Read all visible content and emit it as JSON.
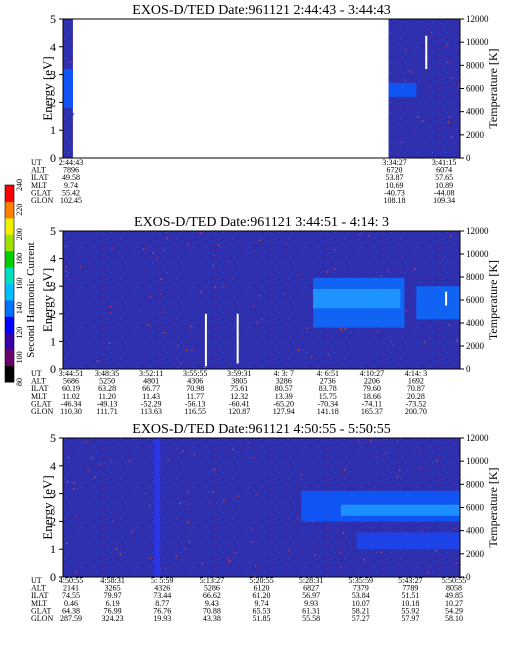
{
  "colorbar": {
    "label": "Second Harmonic Current",
    "ticks": [
      "80",
      "100",
      "120",
      "140",
      "160",
      "180",
      "200",
      "220",
      "240"
    ],
    "colors": [
      "#000000",
      "#6a006a",
      "#3a00a8",
      "#0000ff",
      "#0070ff",
      "#00c0ff",
      "#00e0c0",
      "#00d000",
      "#a0e000",
      "#f0f000",
      "#ff8000",
      "#ff0000"
    ]
  },
  "chart_data": [
    {
      "type": "heatmap",
      "title": "EXOS-D/TED   Date:961121  2:44:43 - 3:44:43",
      "ylabel": "Energy [eV]",
      "y2label": "Temperature [K]",
      "ylim": [
        0,
        5
      ],
      "y2lim": [
        0,
        12000
      ],
      "yticks": [
        "0",
        "1",
        "2",
        "3",
        "4",
        "5"
      ],
      "y2ticks": [
        "0",
        "2000",
        "4000",
        "6000",
        "8000",
        "10000",
        "12000"
      ],
      "orbit_rows": [
        "UT",
        "ALT",
        "ILAT",
        "MLT",
        "GLAT",
        "GLON"
      ],
      "orbit_table": [
        {
          "x": 0.0,
          "values": [
            "2:44:43",
            "7896",
            "49.58",
            "9.74",
            "55.42",
            "102.45"
          ]
        },
        {
          "x": 0.835,
          "values": [
            "3:34:27",
            "6720",
            "53.87",
            "10.69",
            "-40.73",
            "108.18"
          ]
        },
        {
          "x": 0.96,
          "values": [
            "3:41:15",
            "6074",
            "57.65",
            "10.89",
            "-44.08",
            "109.34"
          ]
        }
      ],
      "data_segments": [
        [
          0.0,
          0.025
        ],
        [
          0.82,
          1.0
        ]
      ],
      "features": [
        {
          "kind": "band",
          "x": [
            0.82,
            0.89
          ],
          "energy": [
            2.2,
            2.7
          ],
          "color": "#0a5cff"
        },
        {
          "kind": "spike",
          "x": 0.915,
          "energy": [
            3.2,
            4.4
          ],
          "color": "#ffffff"
        },
        {
          "kind": "band",
          "x": [
            0.0,
            0.025
          ],
          "energy": [
            1.8,
            3.2
          ],
          "color": "#0a5cff"
        }
      ]
    },
    {
      "type": "heatmap",
      "title": "EXOS-D/TED   Date:961121  3:44:51 - 4:14: 3",
      "ylabel": "Energy [eV]",
      "y2label": "Temperature [K]",
      "ylim": [
        0,
        5
      ],
      "y2lim": [
        0,
        12000
      ],
      "yticks": [
        "0",
        "1",
        "2",
        "3",
        "4",
        "5"
      ],
      "y2ticks": [
        "0",
        "2000",
        "4000",
        "6000",
        "8000",
        "10000",
        "12000"
      ],
      "orbit_rows": [
        "UT",
        "ALT",
        "ILAT",
        "MLT",
        "GLAT",
        "GLON"
      ],
      "orbit_table": [
        {
          "x": 0.0,
          "values": [
            "3:44:51",
            "5686",
            "60.19",
            "11.02",
            "-46.34",
            "110.30"
          ]
        },
        {
          "x": 0.111,
          "values": [
            "3:48:35",
            "5250",
            "63.28",
            "11.20",
            "-49.13",
            "111.71"
          ]
        },
        {
          "x": 0.222,
          "values": [
            "3:52:11",
            "4801",
            "66.77",
            "11.43",
            "-52.29",
            "113.63"
          ]
        },
        {
          "x": 0.333,
          "values": [
            "3:55:55",
            "4306",
            "70.98",
            "11.77",
            "-56.13",
            "116.55"
          ]
        },
        {
          "x": 0.444,
          "values": [
            "3:59:31",
            "3805",
            "75.61",
            "12.32",
            "-60.41",
            "120.87"
          ]
        },
        {
          "x": 0.556,
          "values": [
            "4: 3: 7",
            "3286",
            "80.57",
            "13.39",
            "-65.20",
            "127.94"
          ]
        },
        {
          "x": 0.667,
          "values": [
            "4: 6:51",
            "2736",
            "83.78",
            "15.75",
            "-70.34",
            "141.18"
          ]
        },
        {
          "x": 0.778,
          "values": [
            "4:10:27",
            "2206",
            "79.60",
            "18.66",
            "-74.11",
            "165.37"
          ]
        },
        {
          "x": 0.889,
          "values": [
            "4:14: 3",
            "1692",
            "70.87",
            "20.28",
            "-73.52",
            "200.70"
          ]
        }
      ],
      "data_segments": [
        [
          0.0,
          1.0
        ]
      ],
      "features": [
        {
          "kind": "band",
          "x": [
            0.63,
            0.86
          ],
          "energy": [
            1.5,
            3.3
          ],
          "color": "#0a6cff"
        },
        {
          "kind": "band",
          "x": [
            0.63,
            0.85
          ],
          "energy": [
            2.2,
            2.9
          ],
          "color": "#1e9bff"
        },
        {
          "kind": "band",
          "x": [
            0.89,
            1.0
          ],
          "energy": [
            1.8,
            3.0
          ],
          "color": "#0a6cff"
        },
        {
          "kind": "spike",
          "x": 0.36,
          "energy": [
            0.1,
            2.0
          ],
          "color": "#ffffff"
        },
        {
          "kind": "spike",
          "x": 0.44,
          "energy": [
            0.2,
            2.0
          ],
          "color": "#ffffff"
        },
        {
          "kind": "spike",
          "x": 0.965,
          "energy": [
            2.3,
            2.8
          ],
          "color": "#ffffff"
        }
      ]
    },
    {
      "type": "heatmap",
      "title": "EXOS-D/TED   Date:961121  4:50:55 - 5:50:55",
      "ylabel": "Energy [eV]",
      "y2label": "Temperature [K]",
      "ylim": [
        0,
        5
      ],
      "y2lim": [
        0,
        12000
      ],
      "yticks": [
        "0",
        "1",
        "2",
        "3",
        "4",
        "5"
      ],
      "y2ticks": [
        "0",
        "2000",
        "4000",
        "6000",
        "8000",
        "10000",
        "12000"
      ],
      "orbit_rows": [
        "UT",
        "ALT",
        "ILAT",
        "MLT",
        "GLAT",
        "GLON"
      ],
      "orbit_table": [
        {
          "x": 0.0,
          "values": [
            "4:50:55",
            "2141",
            "74.55",
            "0.46",
            "64.38",
            "287.59"
          ]
        },
        {
          "x": 0.125,
          "values": [
            "4:58:31",
            "3265",
            "79.97",
            "6.19",
            "76.99",
            "324.23"
          ]
        },
        {
          "x": 0.25,
          "values": [
            "5: 5:59",
            "4326",
            "73.44",
            "8.77",
            "76.76",
            "19.93"
          ]
        },
        {
          "x": 0.375,
          "values": [
            "5:13:27",
            "5286",
            "66.62",
            "9.43",
            "70.88",
            "43.38"
          ]
        },
        {
          "x": 0.5,
          "values": [
            "5:20:55",
            "6120",
            "61.20",
            "9.74",
            "65.53",
            "51.85"
          ]
        },
        {
          "x": 0.625,
          "values": [
            "5:28:31",
            "6827",
            "56.97",
            "9.93",
            "61.31",
            "55.58"
          ]
        },
        {
          "x": 0.75,
          "values": [
            "5:35:59",
            "7379",
            "53.84",
            "10.07",
            "58.21",
            "57.27"
          ]
        },
        {
          "x": 0.875,
          "values": [
            "5:43:27",
            "7789",
            "51.51",
            "10.18",
            "55.92",
            "57.97"
          ]
        },
        {
          "x": 1.0,
          "values": [
            "5:50:55",
            "8058",
            "49.85",
            "10.27",
            "54.29",
            "58.10"
          ]
        }
      ],
      "data_segments": [
        [
          0.0,
          1.0
        ]
      ],
      "features": [
        {
          "kind": "band",
          "x": [
            0.6,
            1.0
          ],
          "energy": [
            2.0,
            3.1
          ],
          "color": "#0a5cff"
        },
        {
          "kind": "band",
          "x": [
            0.7,
            1.0
          ],
          "energy": [
            2.2,
            2.6
          ],
          "color": "#1e9bff"
        },
        {
          "kind": "band",
          "x": [
            0.74,
            1.0
          ],
          "energy": [
            1.0,
            1.6
          ],
          "color": "#1a45f0"
        },
        {
          "kind": "band",
          "x": [
            0.23,
            0.245
          ],
          "energy": [
            0.0,
            5.0
          ],
          "color": "#2a38f0"
        }
      ]
    }
  ]
}
